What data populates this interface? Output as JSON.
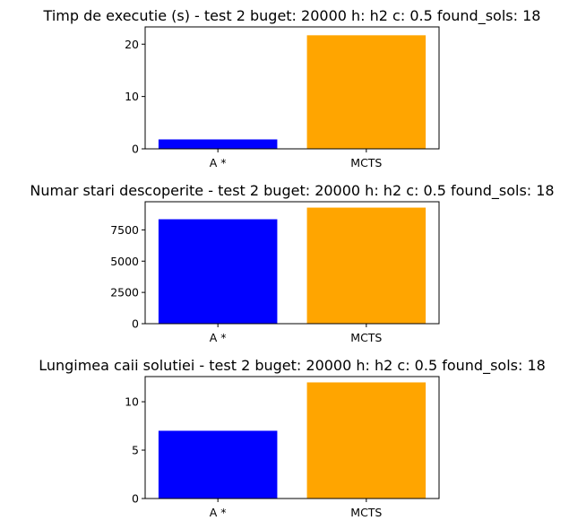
{
  "chart_data": [
    {
      "type": "bar",
      "title": "Timp de executie (s) - test 2   buget: 20000  h: h2  c: 0.5  found_sols: 18",
      "categories": [
        "A *",
        "MCTS"
      ],
      "values": [
        1.8,
        21.7
      ],
      "colors": [
        "#0000ff",
        "#ffa500"
      ],
      "ylim": [
        0,
        23.3
      ],
      "yticks": [
        0,
        10,
        20
      ],
      "ytick_labels": [
        "0",
        "10",
        "20"
      ],
      "xlabel": "",
      "ylabel": "",
      "grid": false,
      "legend": "none"
    },
    {
      "type": "bar",
      "title": "Numar stari descoperite - test 2   buget: 20000  h: h2  c: 0.5  found_sols: 18",
      "categories": [
        "A *",
        "MCTS"
      ],
      "values": [
        8350,
        9280
      ],
      "colors": [
        "#0000ff",
        "#ffa500"
      ],
      "ylim": [
        0,
        9750
      ],
      "yticks": [
        0,
        2500,
        5000,
        7500
      ],
      "ytick_labels": [
        "0",
        "2500",
        "5000",
        "7500"
      ],
      "xlabel": "",
      "ylabel": "",
      "grid": false,
      "legend": "none"
    },
    {
      "type": "bar",
      "title": "Lungimea caii solutiei - test 2   buget: 20000  h: h2  c: 0.5  found_sols: 18",
      "categories": [
        "A *",
        "MCTS"
      ],
      "values": [
        7,
        12
      ],
      "colors": [
        "#0000ff",
        "#ffa500"
      ],
      "ylim": [
        0,
        12.6
      ],
      "yticks": [
        0,
        5,
        10
      ],
      "ytick_labels": [
        "0",
        "5",
        "10"
      ],
      "xlabel": "",
      "ylabel": "",
      "grid": false,
      "legend": "none"
    }
  ]
}
